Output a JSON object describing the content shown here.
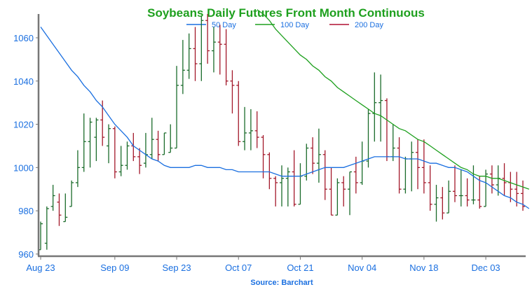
{
  "chart_data": {
    "type": "ohlc",
    "title": "Soybeans Daily Futures Front Month Continuous",
    "source": "Source: Barchart",
    "ylim": [
      959,
      1071
    ],
    "yticks": [
      960,
      980,
      1000,
      1020,
      1040,
      1060
    ],
    "xticks": [
      "Aug 23",
      "Sep 09",
      "Sep 23",
      "Oct 07",
      "Oct 21",
      "Nov 04",
      "Nov 18",
      "Dec 03"
    ],
    "xtick_index": [
      0,
      12,
      22,
      32,
      42,
      52,
      62,
      72
    ],
    "legend": [
      "50 Day",
      "100 Day",
      "200 Day"
    ],
    "colors": {
      "up": "#1a6b2a",
      "down": "#a3182a",
      "ma50": "#1a6fe0",
      "ma100": "#1ea01e",
      "ma200": "#b01030",
      "title": "#1ea01e",
      "ticks": "#1a6fe0",
      "axis": "#777777"
    },
    "bars": [
      [
        962,
        975,
        962,
        974
      ],
      [
        965,
        982,
        962,
        981
      ],
      [
        982,
        992,
        980,
        987
      ],
      [
        984,
        988,
        973,
        978
      ],
      [
        975,
        988,
        975,
        977
      ],
      [
        982,
        994,
        982,
        993
      ],
      [
        993,
        1008,
        991,
        1000
      ],
      [
        1000,
        1025,
        998,
        1012
      ],
      [
        1012,
        1023,
        1000,
        1021
      ],
      [
        1014,
        1023,
        1003,
        1022
      ],
      [
        1022,
        1031,
        1010,
        1014
      ],
      [
        1010,
        1020,
        1002,
        1018
      ],
      [
        1018,
        1019,
        995,
        998
      ],
      [
        998,
        1010,
        996,
        1001
      ],
      [
        1001,
        1012,
        999,
        1010
      ],
      [
        1010,
        1016,
        1003,
        1005
      ],
      [
        1005,
        1009,
        997,
        1001
      ],
      [
        1002,
        1016,
        1000,
        1006
      ],
      [
        1006,
        1023,
        1004,
        1013
      ],
      [
        1013,
        1017,
        1003,
        1006
      ],
      [
        1006,
        1016,
        1006,
        1016
      ],
      [
        1007,
        1020,
        1007,
        1009
      ],
      [
        1009,
        1047,
        1009,
        1038
      ],
      [
        1038,
        1059,
        1034,
        1045
      ],
      [
        1045,
        1062,
        1041,
        1055
      ],
      [
        1055,
        1065,
        1040,
        1048
      ],
      [
        1048,
        1070,
        1040,
        1068
      ],
      [
        1068,
        1071,
        1048,
        1054
      ],
      [
        1054,
        1065,
        1044,
        1058
      ],
      [
        1058,
        1066,
        1043,
        1057
      ],
      [
        1057,
        1064,
        1038,
        1040
      ],
      [
        1040,
        1045,
        1025,
        1038
      ],
      [
        1038,
        1040,
        1010,
        1012
      ],
      [
        1012,
        1028,
        1008,
        1016
      ],
      [
        1016,
        1027,
        1008,
        1017
      ],
      [
        1017,
        1026,
        1009,
        1014
      ],
      [
        1014,
        1015,
        995,
        1006
      ],
      [
        1006,
        1007,
        990,
        995
      ],
      [
        995,
        996,
        982,
        993
      ],
      [
        993,
        1001,
        982,
        995
      ],
      [
        995,
        1000,
        982,
        998
      ],
      [
        998,
        1008,
        982,
        983
      ],
      [
        983,
        1002,
        983,
        996
      ],
      [
        996,
        1011,
        994,
        1009
      ],
      [
        1009,
        1014,
        997,
        1002
      ],
      [
        1002,
        1018,
        993,
        1006
      ],
      [
        1006,
        1008,
        985,
        990
      ],
      [
        990,
        1000,
        978,
        978
      ],
      [
        978,
        995,
        978,
        993
      ],
      [
        993,
        996,
        982,
        990
      ],
      [
        990,
        998,
        978,
        998
      ],
      [
        998,
        1005,
        988,
        993
      ],
      [
        993,
        1012,
        992,
        1003
      ],
      [
        1003,
        1027,
        1000,
        1025
      ],
      [
        1025,
        1044,
        1012,
        1030
      ],
      [
        1030,
        1043,
        1012,
        1031
      ],
      [
        1031,
        1032,
        1003,
        1005
      ],
      [
        1005,
        1020,
        1003,
        1009
      ],
      [
        1009,
        1014,
        988,
        990
      ],
      [
        990,
        1005,
        988,
        1004
      ],
      [
        1004,
        1012,
        989,
        1007
      ],
      [
        1007,
        1013,
        990,
        1000
      ],
      [
        1000,
        1013,
        988,
        993
      ],
      [
        993,
        1001,
        980,
        983
      ],
      [
        983,
        992,
        975,
        986
      ],
      [
        986,
        991,
        976,
        979
      ],
      [
        979,
        994,
        979,
        989
      ],
      [
        989,
        1001,
        984,
        987
      ],
      [
        987,
        999,
        982,
        987
      ],
      [
        987,
        995,
        982,
        985
      ],
      [
        985,
        1001,
        983,
        985
      ],
      [
        985,
        996,
        981,
        982
      ],
      [
        982,
        999,
        982,
        997
      ],
      [
        997,
        1001,
        988,
        992
      ],
      [
        992,
        1001,
        987,
        995
      ],
      [
        995,
        1002,
        987,
        993
      ],
      [
        993,
        998,
        984,
        990
      ],
      [
        990,
        998,
        982,
        988
      ],
      [
        988,
        994,
        980,
        982
      ]
    ],
    "ma50": [
      [
        0,
        1065
      ],
      [
        1,
        1061
      ],
      [
        2,
        1057
      ],
      [
        3,
        1053
      ],
      [
        4,
        1049
      ],
      [
        5,
        1045
      ],
      [
        6,
        1042
      ],
      [
        7,
        1038
      ],
      [
        8,
        1035
      ],
      [
        9,
        1031
      ],
      [
        10,
        1028
      ],
      [
        11,
        1024
      ],
      [
        12,
        1020
      ],
      [
        13,
        1017
      ],
      [
        14,
        1014
      ],
      [
        15,
        1010
      ],
      [
        16,
        1008
      ],
      [
        17,
        1006
      ],
      [
        18,
        1004
      ],
      [
        19,
        1003
      ],
      [
        20,
        1001
      ],
      [
        21,
        1000
      ],
      [
        22,
        1000
      ],
      [
        23,
        1000
      ],
      [
        24,
        1000
      ],
      [
        25,
        1001
      ],
      [
        26,
        1001
      ],
      [
        27,
        1000
      ],
      [
        28,
        1000
      ],
      [
        29,
        1000
      ],
      [
        30,
        999
      ],
      [
        31,
        999
      ],
      [
        32,
        998
      ],
      [
        33,
        998
      ],
      [
        34,
        998
      ],
      [
        35,
        998
      ],
      [
        36,
        998
      ],
      [
        37,
        998
      ],
      [
        38,
        997
      ],
      [
        39,
        996
      ],
      [
        40,
        996
      ],
      [
        41,
        996
      ],
      [
        42,
        996
      ],
      [
        43,
        997
      ],
      [
        44,
        998
      ],
      [
        45,
        999
      ],
      [
        46,
        1000
      ],
      [
        47,
        1000
      ],
      [
        48,
        1000
      ],
      [
        49,
        1000
      ],
      [
        50,
        1001
      ],
      [
        51,
        1002
      ],
      [
        52,
        1003
      ],
      [
        53,
        1004
      ],
      [
        54,
        1005
      ],
      [
        55,
        1005
      ],
      [
        56,
        1005
      ],
      [
        57,
        1005
      ],
      [
        58,
        1005
      ],
      [
        59,
        1004
      ],
      [
        60,
        1004
      ],
      [
        61,
        1004
      ],
      [
        62,
        1003
      ],
      [
        63,
        1002
      ],
      [
        64,
        1002
      ],
      [
        65,
        1001
      ],
      [
        66,
        1000
      ],
      [
        67,
        1000
      ],
      [
        68,
        999
      ],
      [
        69,
        998
      ],
      [
        70,
        996
      ],
      [
        71,
        994
      ],
      [
        72,
        993
      ],
      [
        73,
        991
      ],
      [
        74,
        989
      ],
      [
        75,
        987
      ],
      [
        76,
        986
      ],
      [
        77,
        984
      ],
      [
        78,
        983
      ],
      [
        79,
        981
      ]
    ],
    "ma100": [
      [
        35,
        1073
      ],
      [
        36,
        1071
      ],
      [
        37,
        1068
      ],
      [
        38,
        1064
      ],
      [
        39,
        1061
      ],
      [
        40,
        1058
      ],
      [
        41,
        1055
      ],
      [
        42,
        1052
      ],
      [
        43,
        1050
      ],
      [
        44,
        1047
      ],
      [
        45,
        1045
      ],
      [
        46,
        1042
      ],
      [
        47,
        1040
      ],
      [
        48,
        1037
      ],
      [
        49,
        1035
      ],
      [
        50,
        1033
      ],
      [
        51,
        1031
      ],
      [
        52,
        1029
      ],
      [
        53,
        1027
      ],
      [
        54,
        1025
      ],
      [
        55,
        1024
      ],
      [
        56,
        1022
      ],
      [
        57,
        1020
      ],
      [
        58,
        1018
      ],
      [
        59,
        1017
      ],
      [
        60,
        1015
      ],
      [
        61,
        1013
      ],
      [
        62,
        1012
      ],
      [
        63,
        1010
      ],
      [
        64,
        1008
      ],
      [
        65,
        1006
      ],
      [
        66,
        1004
      ],
      [
        67,
        1002
      ],
      [
        68,
        1000
      ],
      [
        69,
        999
      ],
      [
        70,
        997
      ],
      [
        71,
        996
      ],
      [
        72,
        996
      ],
      [
        73,
        995
      ],
      [
        74,
        995
      ],
      [
        75,
        994
      ],
      [
        76,
        993
      ],
      [
        77,
        992
      ],
      [
        78,
        991
      ],
      [
        79,
        990
      ]
    ]
  }
}
